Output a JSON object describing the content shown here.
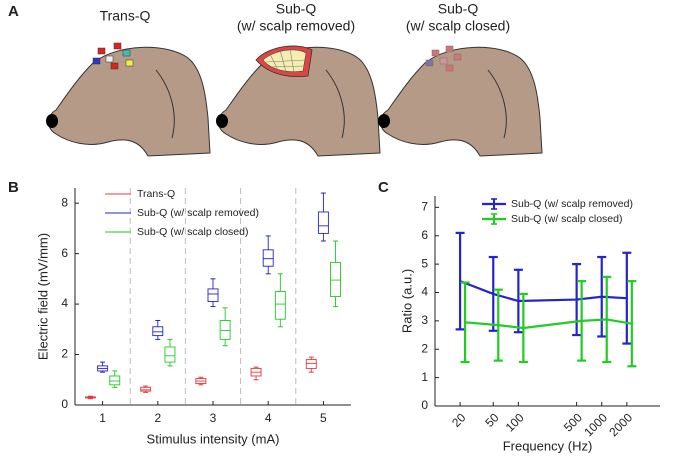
{
  "panel_a": {
    "label": "A",
    "titles": [
      [
        "Trans-Q"
      ],
      [
        "Sub-Q",
        "(w/ scalp removed)"
      ],
      [
        "Sub-Q",
        "(w/ scalp closed)"
      ]
    ]
  },
  "chart_data": [
    {
      "type": "box",
      "panel_label": "B",
      "ylabel": "Electric field (mV/mm)",
      "xlabel": "Stimulus intensity (mA)",
      "categories": [
        "1",
        "2",
        "3",
        "4",
        "5"
      ],
      "ylim": [
        0,
        8.6
      ],
      "yticks": [
        0,
        2,
        4,
        6,
        8
      ],
      "legend": "upper left",
      "series": [
        {
          "name": "Trans-Q",
          "color": "#e8393a",
          "min": [
            0.25,
            0.5,
            0.8,
            1.0,
            1.3
          ],
          "q1": [
            0.28,
            0.55,
            0.85,
            1.15,
            1.45
          ],
          "median": [
            0.3,
            0.6,
            0.95,
            1.3,
            1.65
          ],
          "q3": [
            0.32,
            0.7,
            1.05,
            1.45,
            1.8
          ],
          "max": [
            0.35,
            0.75,
            1.1,
            1.5,
            1.9
          ]
        },
        {
          "name": "Sub-Q (w/ scalp removed)",
          "color": "#2323d0",
          "min": [
            1.3,
            2.6,
            3.9,
            5.2,
            6.5
          ],
          "q1": [
            1.35,
            2.75,
            4.1,
            5.5,
            6.8
          ],
          "median": [
            1.45,
            2.9,
            4.4,
            5.8,
            7.1
          ],
          "q3": [
            1.55,
            3.1,
            4.6,
            6.15,
            7.65
          ],
          "max": [
            1.7,
            3.35,
            5.0,
            6.7,
            8.4
          ]
        },
        {
          "name": "Sub-Q (w/ scalp closed)",
          "color": "#22cc22",
          "min": [
            0.7,
            1.55,
            2.35,
            3.1,
            3.9
          ],
          "q1": [
            0.8,
            1.7,
            2.6,
            3.4,
            4.3
          ],
          "median": [
            0.95,
            1.95,
            2.95,
            4.0,
            4.95
          ],
          "q3": [
            1.15,
            2.3,
            3.35,
            4.5,
            5.65
          ],
          "max": [
            1.35,
            2.6,
            3.85,
            5.2,
            6.5
          ]
        }
      ]
    },
    {
      "type": "line",
      "panel_label": "C",
      "ylabel": "Ratio (a.u.)",
      "xlabel": "Frequency (Hz)",
      "x": [
        20,
        50,
        100,
        500,
        1000,
        2000
      ],
      "xscale": "log",
      "xlim": [
        10,
        5000
      ],
      "xticks": [
        20,
        50,
        100,
        500,
        1000,
        2000
      ],
      "ylim": [
        0,
        7.4
      ],
      "yticks": [
        0,
        1,
        2,
        3,
        4,
        5,
        6,
        7
      ],
      "legend": "upper right",
      "series": [
        {
          "name": "Sub-Q (w/ scalp removed)",
          "color": "#2323d0",
          "values": [
            4.4,
            3.95,
            3.7,
            3.75,
            3.85,
            3.8
          ],
          "errors": [
            1.7,
            1.3,
            1.1,
            1.25,
            1.4,
            1.6
          ]
        },
        {
          "name": "Sub-Q (w/ scalp closed)",
          "color": "#22cc22",
          "values": [
            2.95,
            2.85,
            2.75,
            3.0,
            3.05,
            2.9
          ],
          "errors": [
            1.4,
            1.25,
            1.2,
            1.4,
            1.5,
            1.5
          ]
        }
      ]
    }
  ]
}
